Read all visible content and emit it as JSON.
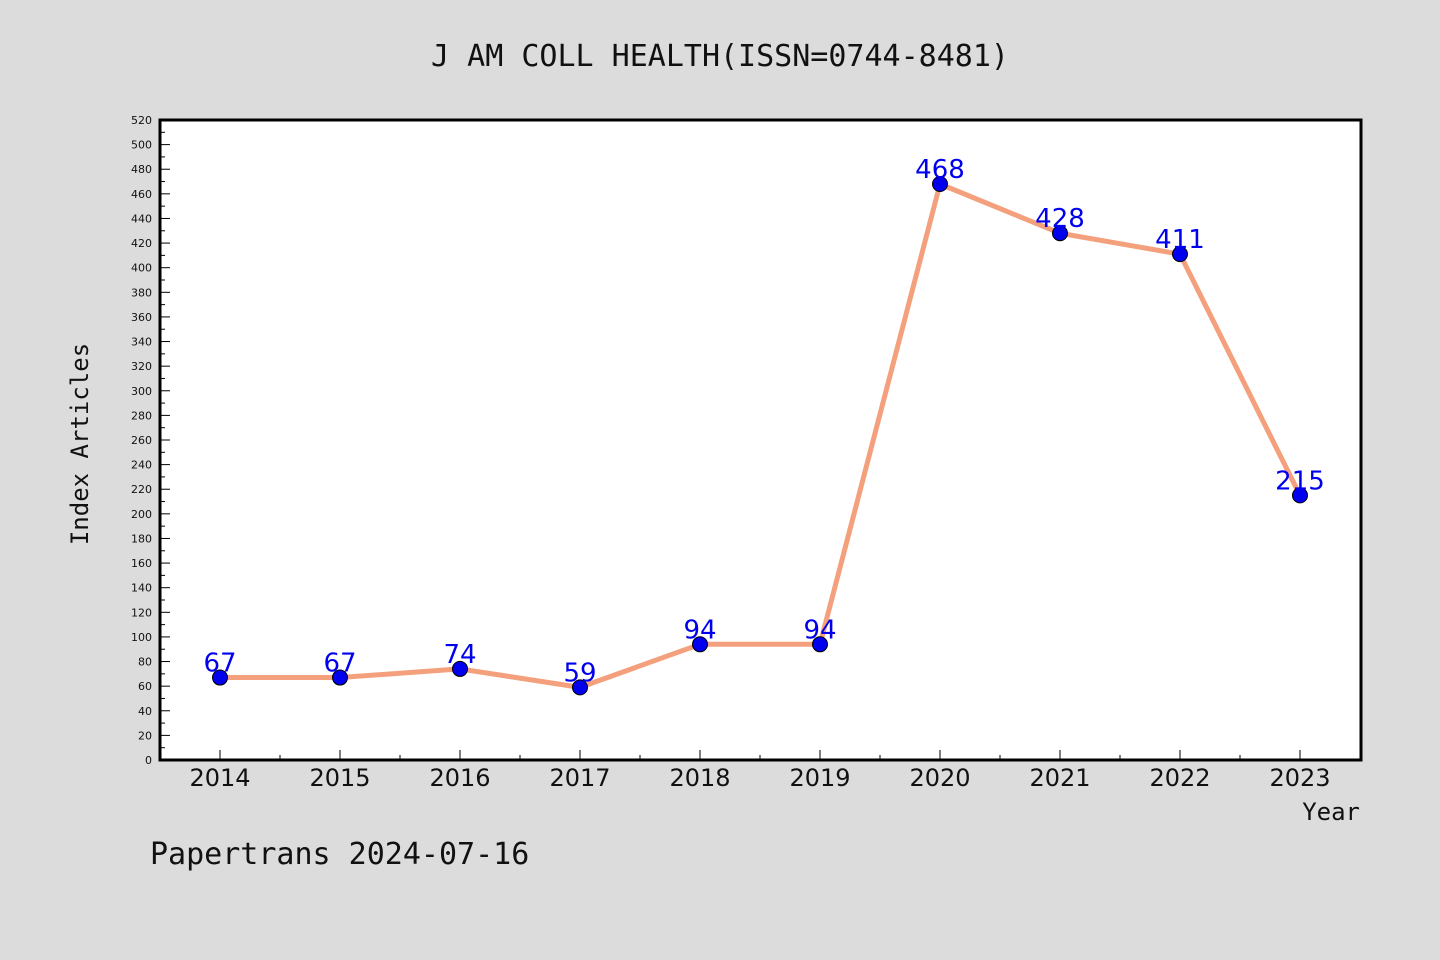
{
  "chart_data": {
    "type": "line",
    "title": "J AM COLL HEALTH(ISSN=0744-8481)",
    "xlabel": "Year",
    "ylabel": "Index Articles",
    "categories": [
      "2014",
      "2015",
      "2016",
      "2017",
      "2018",
      "2019",
      "2020",
      "2021",
      "2022",
      "2023"
    ],
    "values": [
      67,
      67,
      74,
      59,
      94,
      94,
      468,
      428,
      411,
      215
    ],
    "data_labels": [
      "67",
      "67",
      "74",
      "59",
      "94",
      "94",
      "468",
      "428",
      "411",
      "215"
    ],
    "ylim": [
      0,
      520
    ],
    "ytick_step": 20,
    "grid": false,
    "legend": "none",
    "colors": {
      "line": "#f4a07c",
      "marker": "#0000ee",
      "data_label": "#0000ee",
      "background": "#dcdcdc",
      "plot_background": "#ffffff"
    }
  },
  "footer": {
    "text": "Papertrans 2024-07-16"
  }
}
